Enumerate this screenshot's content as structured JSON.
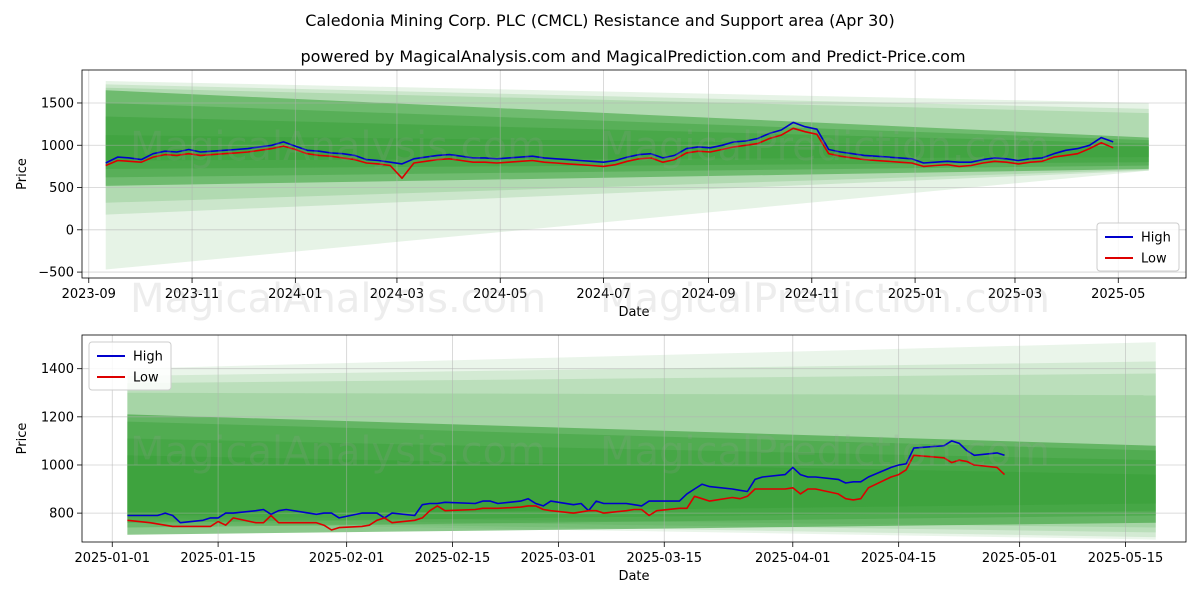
{
  "figure": {
    "title": "Caledonia Mining Corp. PLC (CMCL) Resistance and Support area (Apr 30)",
    "subtitle": "powered by MagicalAnalysis.com and MagicalPrediction.com and Predict-Price.com",
    "watermarks": [
      "MagicalAnalysis.com",
      "MagicalPrediction.com"
    ]
  },
  "chart_data": [
    {
      "type": "line",
      "name": "full-history",
      "xlabel": "Date",
      "ylabel": "Price",
      "xlim": [
        "2023-08-28",
        "2025-06-10"
      ],
      "ylim": [
        -570,
        1890
      ],
      "grid": true,
      "legend_position": "lower right",
      "xticks": [
        "2023-09",
        "2023-11",
        "2024-01",
        "2024-03",
        "2024-05",
        "2024-07",
        "2024-09",
        "2024-11",
        "2025-01",
        "2025-03",
        "2025-05"
      ],
      "yticks": [
        -500,
        0,
        500,
        1000,
        1500
      ],
      "bands": {
        "x_start": "2023-09-11",
        "x_end": "2025-05-19",
        "color": "#2e9b2e",
        "layers": [
          {
            "start": [
              -470,
              1760
            ],
            "end": [
              700,
              1500
            ],
            "opacity": 0.12
          },
          {
            "start": [
              180,
              1720
            ],
            "end": [
              700,
              1430
            ],
            "opacity": 0.14
          },
          {
            "start": [
              320,
              1680
            ],
            "end": [
              710,
              1380
            ],
            "opacity": 0.16
          },
          {
            "start": [
              520,
              1650
            ],
            "end": [
              720,
              1090
            ],
            "opacity": 0.5
          },
          {
            "start": [
              620,
              1500
            ],
            "end": [
              760,
              1060
            ],
            "opacity": 0.35
          },
          {
            "start": [
              720,
              1340
            ],
            "end": [
              800,
              1020
            ],
            "opacity": 0.35
          },
          {
            "start": [
              820,
              1120
            ],
            "end": [
              860,
              980
            ],
            "opacity": 0.3
          }
        ]
      },
      "series": [
        {
          "name": "High",
          "color": "#0000cc",
          "x": [
            "2023-09-11",
            "2023-09-18",
            "2023-09-25",
            "2023-10-02",
            "2023-10-09",
            "2023-10-16",
            "2023-10-23",
            "2023-10-30",
            "2023-11-06",
            "2023-11-13",
            "2023-11-20",
            "2023-11-27",
            "2023-12-04",
            "2023-12-11",
            "2023-12-18",
            "2023-12-25",
            "2024-01-01",
            "2024-01-08",
            "2024-01-15",
            "2024-01-22",
            "2024-01-29",
            "2024-02-05",
            "2024-02-12",
            "2024-02-19",
            "2024-02-26",
            "2024-03-04",
            "2024-03-11",
            "2024-03-18",
            "2024-03-25",
            "2024-04-01",
            "2024-04-08",
            "2024-04-15",
            "2024-04-22",
            "2024-04-29",
            "2024-05-06",
            "2024-05-13",
            "2024-05-20",
            "2024-05-27",
            "2024-06-03",
            "2024-06-10",
            "2024-06-17",
            "2024-06-24",
            "2024-07-01",
            "2024-07-08",
            "2024-07-15",
            "2024-07-22",
            "2024-07-29",
            "2024-08-05",
            "2024-08-12",
            "2024-08-19",
            "2024-08-26",
            "2024-09-02",
            "2024-09-09",
            "2024-09-16",
            "2024-09-23",
            "2024-09-30",
            "2024-10-07",
            "2024-10-14",
            "2024-10-21",
            "2024-10-28",
            "2024-11-04",
            "2024-11-11",
            "2024-11-18",
            "2024-11-25",
            "2024-12-02",
            "2024-12-09",
            "2024-12-16",
            "2024-12-23",
            "2024-12-30",
            "2025-01-06",
            "2025-01-13",
            "2025-01-20",
            "2025-01-27",
            "2025-02-03",
            "2025-02-10",
            "2025-02-17",
            "2025-02-24",
            "2025-03-03",
            "2025-03-10",
            "2025-03-17",
            "2025-03-24",
            "2025-03-31",
            "2025-04-07",
            "2025-04-14",
            "2025-04-21",
            "2025-04-28"
          ],
          "y": [
            790,
            860,
            850,
            830,
            900,
            930,
            920,
            950,
            920,
            930,
            940,
            950,
            960,
            980,
            1000,
            1040,
            990,
            940,
            930,
            910,
            900,
            880,
            830,
            820,
            800,
            780,
            840,
            860,
            880,
            890,
            870,
            850,
            850,
            840,
            850,
            860,
            870,
            850,
            840,
            830,
            820,
            810,
            800,
            820,
            860,
            890,
            900,
            850,
            880,
            960,
            980,
            970,
            1000,
            1040,
            1050,
            1080,
            1140,
            1180,
            1270,
            1220,
            1190,
            950,
            920,
            900,
            880,
            870,
            860,
            850,
            840,
            790,
            800,
            810,
            800,
            800,
            830,
            850,
            840,
            820,
            840,
            850,
            900,
            940,
            960,
            1000,
            1090,
            1040
          ]
        },
        {
          "name": "Low",
          "color": "#dd0000",
          "x": [
            "2023-09-11",
            "2023-09-18",
            "2023-09-25",
            "2023-10-02",
            "2023-10-09",
            "2023-10-16",
            "2023-10-23",
            "2023-10-30",
            "2023-11-06",
            "2023-11-13",
            "2023-11-20",
            "2023-11-27",
            "2023-12-04",
            "2023-12-11",
            "2023-12-18",
            "2023-12-25",
            "2024-01-01",
            "2024-01-08",
            "2024-01-15",
            "2024-01-22",
            "2024-01-29",
            "2024-02-05",
            "2024-02-12",
            "2024-02-19",
            "2024-02-26",
            "2024-03-04",
            "2024-03-11",
            "2024-03-18",
            "2024-03-25",
            "2024-04-01",
            "2024-04-08",
            "2024-04-15",
            "2024-04-22",
            "2024-04-29",
            "2024-05-06",
            "2024-05-13",
            "2024-05-20",
            "2024-05-27",
            "2024-06-03",
            "2024-06-10",
            "2024-06-17",
            "2024-06-24",
            "2024-07-01",
            "2024-07-08",
            "2024-07-15",
            "2024-07-22",
            "2024-07-29",
            "2024-08-05",
            "2024-08-12",
            "2024-08-19",
            "2024-08-26",
            "2024-09-02",
            "2024-09-09",
            "2024-09-16",
            "2024-09-23",
            "2024-09-30",
            "2024-10-07",
            "2024-10-14",
            "2024-10-21",
            "2024-10-28",
            "2024-11-04",
            "2024-11-11",
            "2024-11-18",
            "2024-11-25",
            "2024-12-02",
            "2024-12-09",
            "2024-12-16",
            "2024-12-23",
            "2024-12-30",
            "2025-01-06",
            "2025-01-13",
            "2025-01-20",
            "2025-01-27",
            "2025-02-03",
            "2025-02-10",
            "2025-02-17",
            "2025-02-24",
            "2025-03-03",
            "2025-03-10",
            "2025-03-17",
            "2025-03-24",
            "2025-03-31",
            "2025-04-07",
            "2025-04-14",
            "2025-04-21",
            "2025-04-28"
          ],
          "y": [
            760,
            820,
            810,
            800,
            860,
            890,
            880,
            900,
            880,
            890,
            900,
            910,
            920,
            940,
            960,
            990,
            950,
            900,
            880,
            870,
            850,
            830,
            790,
            780,
            760,
            610,
            790,
            810,
            830,
            840,
            820,
            800,
            800,
            790,
            800,
            810,
            820,
            800,
            790,
            780,
            770,
            760,
            750,
            770,
            810,
            840,
            850,
            800,
            830,
            910,
            930,
            920,
            950,
            980,
            1000,
            1020,
            1080,
            1120,
            1200,
            1160,
            1130,
            900,
            870,
            850,
            830,
            820,
            810,
            800,
            790,
            750,
            760,
            770,
            750,
            760,
            790,
            810,
            800,
            780,
            800,
            810,
            860,
            880,
            900,
            960,
            1030,
            970
          ]
        }
      ]
    },
    {
      "type": "line",
      "name": "recent",
      "xlabel": "Date",
      "ylabel": "Price",
      "xlim": [
        "2024-12-28",
        "2025-05-23"
      ],
      "ylim": [
        680,
        1540
      ],
      "grid": true,
      "legend_position": "upper left",
      "xticks": [
        "2025-01-01",
        "2025-01-15",
        "2025-02-01",
        "2025-02-15",
        "2025-03-01",
        "2025-03-15",
        "2025-04-01",
        "2025-04-15",
        "2025-05-01",
        "2025-05-15"
      ],
      "yticks": [
        800,
        1000,
        1200,
        1400
      ],
      "bands": {
        "x_start": "2025-01-03",
        "x_end": "2025-05-19",
        "color": "#2e9b2e",
        "layers": [
          {
            "start": [
              760,
              1400
            ],
            "end": [
              690,
              1510
            ],
            "opacity": 0.1
          },
          {
            "start": [
              770,
              1370
            ],
            "end": [
              700,
              1430
            ],
            "opacity": 0.12
          },
          {
            "start": [
              780,
              1340
            ],
            "end": [
              720,
              1380
            ],
            "opacity": 0.14
          },
          {
            "start": [
              790,
              1300
            ],
            "end": [
              740,
              1290
            ],
            "opacity": 0.14
          },
          {
            "start": [
              710,
              1210
            ],
            "end": [
              760,
              1080
            ],
            "opacity": 0.55
          },
          {
            "start": [
              740,
              1180
            ],
            "end": [
              790,
              1060
            ],
            "opacity": 0.35
          },
          {
            "start": [
              760,
              1110
            ],
            "end": [
              810,
              1020
            ],
            "opacity": 0.3
          },
          {
            "start": [
              790,
              1040
            ],
            "end": [
              840,
              960
            ],
            "opacity": 0.3
          }
        ]
      },
      "series": [
        {
          "name": "High",
          "color": "#0000cc",
          "x": [
            "2025-01-03",
            "2025-01-06",
            "2025-01-07",
            "2025-01-08",
            "2025-01-09",
            "2025-01-10",
            "2025-01-13",
            "2025-01-14",
            "2025-01-15",
            "2025-01-16",
            "2025-01-17",
            "2025-01-20",
            "2025-01-21",
            "2025-01-22",
            "2025-01-23",
            "2025-01-24",
            "2025-01-27",
            "2025-01-28",
            "2025-01-29",
            "2025-01-30",
            "2025-01-31",
            "2025-02-03",
            "2025-02-04",
            "2025-02-05",
            "2025-02-06",
            "2025-02-07",
            "2025-02-10",
            "2025-02-11",
            "2025-02-12",
            "2025-02-13",
            "2025-02-14",
            "2025-02-18",
            "2025-02-19",
            "2025-02-20",
            "2025-02-21",
            "2025-02-24",
            "2025-02-25",
            "2025-02-26",
            "2025-02-27",
            "2025-02-28",
            "2025-03-03",
            "2025-03-04",
            "2025-03-05",
            "2025-03-06",
            "2025-03-07",
            "2025-03-10",
            "2025-03-11",
            "2025-03-12",
            "2025-03-13",
            "2025-03-14",
            "2025-03-17",
            "2025-03-18",
            "2025-03-19",
            "2025-03-20",
            "2025-03-21",
            "2025-03-24",
            "2025-03-25",
            "2025-03-26",
            "2025-03-27",
            "2025-03-28",
            "2025-03-31",
            "2025-04-01",
            "2025-04-02",
            "2025-04-03",
            "2025-04-04",
            "2025-04-07",
            "2025-04-08",
            "2025-04-09",
            "2025-04-10",
            "2025-04-11",
            "2025-04-14",
            "2025-04-15",
            "2025-04-16",
            "2025-04-17",
            "2025-04-21",
            "2025-04-22",
            "2025-04-23",
            "2025-04-24",
            "2025-04-25",
            "2025-04-28",
            "2025-04-29"
          ],
          "y": [
            790,
            790,
            790,
            800,
            790,
            760,
            770,
            780,
            780,
            800,
            800,
            810,
            815,
            795,
            810,
            815,
            800,
            795,
            800,
            800,
            780,
            800,
            800,
            800,
            780,
            800,
            790,
            835,
            840,
            840,
            845,
            840,
            850,
            850,
            840,
            850,
            860,
            840,
            830,
            850,
            835,
            840,
            810,
            850,
            840,
            840,
            835,
            830,
            850,
            850,
            850,
            880,
            900,
            920,
            910,
            900,
            895,
            890,
            940,
            950,
            960,
            990,
            960,
            950,
            950,
            940,
            925,
            930,
            930,
            950,
            990,
            1000,
            1005,
            1070,
            1080,
            1100,
            1090,
            1060,
            1040,
            1050,
            1040
          ]
        },
        {
          "name": "Low",
          "color": "#dd0000",
          "x": [
            "2025-01-03",
            "2025-01-06",
            "2025-01-07",
            "2025-01-08",
            "2025-01-09",
            "2025-01-10",
            "2025-01-13",
            "2025-01-14",
            "2025-01-15",
            "2025-01-16",
            "2025-01-17",
            "2025-01-20",
            "2025-01-21",
            "2025-01-22",
            "2025-01-23",
            "2025-01-24",
            "2025-01-27",
            "2025-01-28",
            "2025-01-29",
            "2025-01-30",
            "2025-01-31",
            "2025-02-03",
            "2025-02-04",
            "2025-02-05",
            "2025-02-06",
            "2025-02-07",
            "2025-02-10",
            "2025-02-11",
            "2025-02-12",
            "2025-02-13",
            "2025-02-14",
            "2025-02-18",
            "2025-02-19",
            "2025-02-20",
            "2025-02-21",
            "2025-02-24",
            "2025-02-25",
            "2025-02-26",
            "2025-02-27",
            "2025-02-28",
            "2025-03-03",
            "2025-03-04",
            "2025-03-05",
            "2025-03-06",
            "2025-03-07",
            "2025-03-10",
            "2025-03-11",
            "2025-03-12",
            "2025-03-13",
            "2025-03-14",
            "2025-03-17",
            "2025-03-18",
            "2025-03-19",
            "2025-03-20",
            "2025-03-21",
            "2025-03-24",
            "2025-03-25",
            "2025-03-26",
            "2025-03-27",
            "2025-03-28",
            "2025-03-31",
            "2025-04-01",
            "2025-04-02",
            "2025-04-03",
            "2025-04-04",
            "2025-04-07",
            "2025-04-08",
            "2025-04-09",
            "2025-04-10",
            "2025-04-11",
            "2025-04-14",
            "2025-04-15",
            "2025-04-16",
            "2025-04-17",
            "2025-04-21",
            "2025-04-22",
            "2025-04-23",
            "2025-04-24",
            "2025-04-25",
            "2025-04-28",
            "2025-04-29"
          ],
          "y": [
            770,
            760,
            755,
            750,
            745,
            745,
            745,
            745,
            765,
            750,
            780,
            760,
            760,
            790,
            760,
            760,
            760,
            760,
            750,
            730,
            740,
            745,
            750,
            770,
            780,
            760,
            770,
            780,
            810,
            830,
            810,
            815,
            820,
            820,
            820,
            825,
            830,
            830,
            815,
            810,
            800,
            805,
            810,
            810,
            800,
            810,
            815,
            815,
            790,
            810,
            820,
            820,
            870,
            860,
            850,
            865,
            860,
            870,
            900,
            900,
            900,
            905,
            880,
            900,
            900,
            880,
            860,
            855,
            860,
            905,
            950,
            960,
            980,
            1040,
            1030,
            1010,
            1020,
            1015,
            1000,
            990,
            960
          ]
        }
      ]
    }
  ]
}
